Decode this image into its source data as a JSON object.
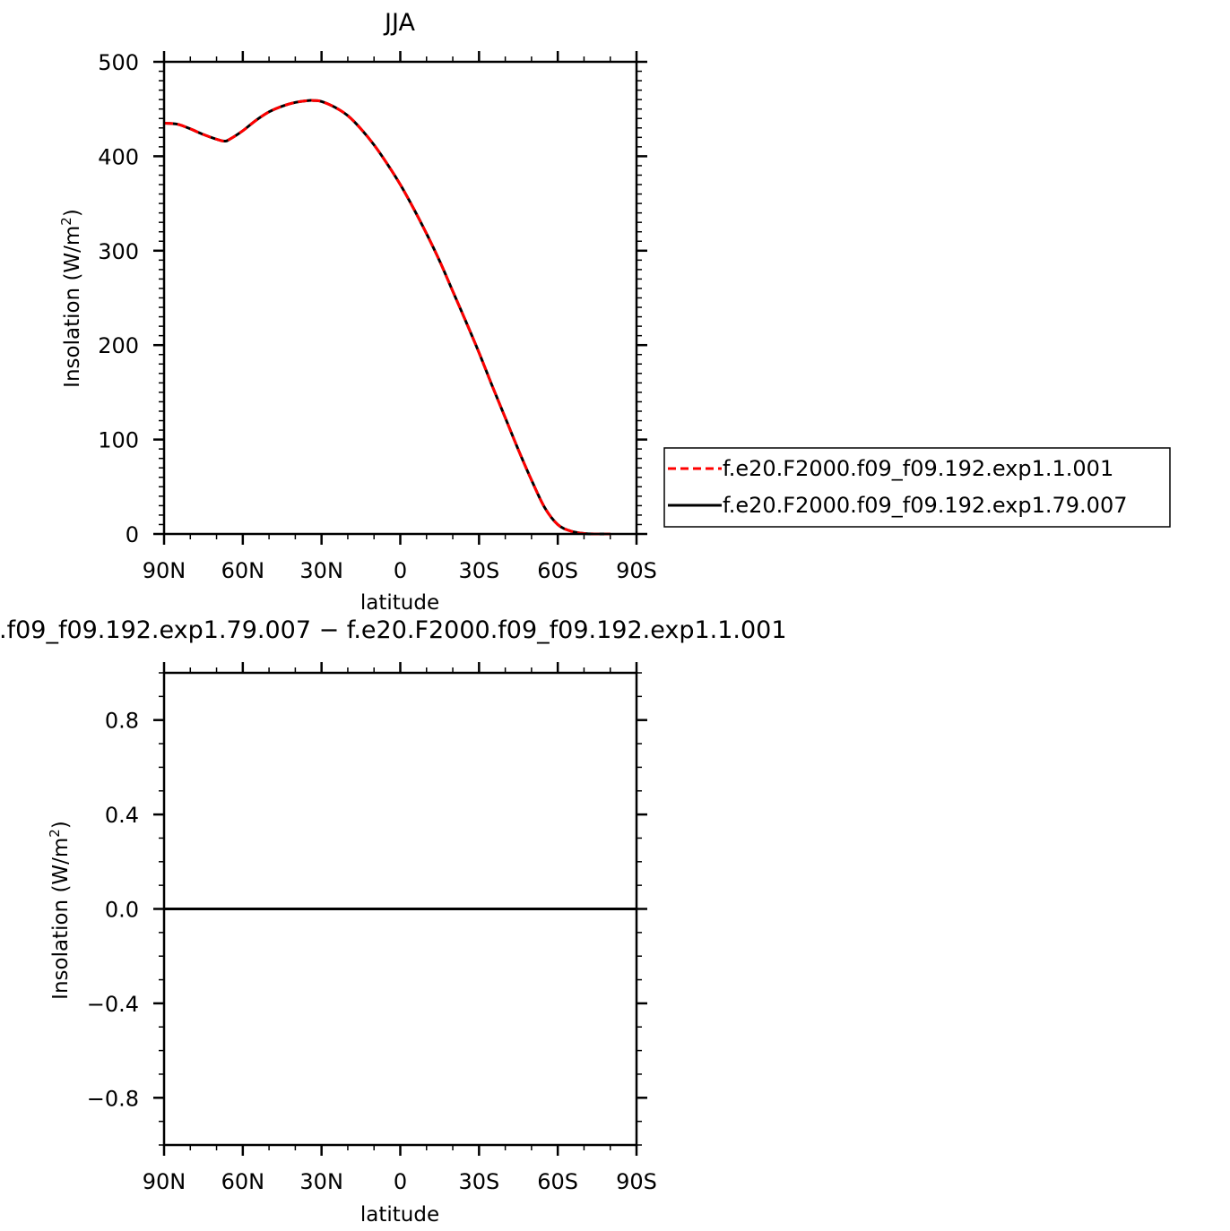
{
  "chart_data": [
    {
      "type": "line",
      "title": "JJA",
      "xlabel": "latitude",
      "ylabel": "Insolation  (W/m",
      "ylabel_sup": "2",
      "ylabel_close": ")",
      "x_tick_labels": [
        "90N",
        "60N",
        "30N",
        "0",
        "30S",
        "60S",
        "90S"
      ],
      "x_tick_values": [
        90,
        60,
        30,
        0,
        -30,
        -60,
        -90
      ],
      "xlim": [
        90,
        -90
      ],
      "ylim": [
        0,
        500
      ],
      "y_ticks": [
        0,
        100,
        200,
        300,
        400,
        500
      ],
      "y_tick_labels": [
        "0",
        "100",
        "200",
        "300",
        "400",
        "500"
      ],
      "grid": false,
      "legend": "right",
      "x": [
        90,
        85,
        80,
        75,
        70,
        67,
        65,
        60,
        55,
        50,
        45,
        40,
        35,
        33,
        30,
        25,
        20,
        15,
        10,
        5,
        0,
        -5,
        -10,
        -15,
        -20,
        -25,
        -30,
        -35,
        -40,
        -45,
        -50,
        -55,
        -60,
        -65,
        -70,
        -75,
        -80
      ],
      "series": [
        {
          "name": "f.e20.F2000.f09_f09.192.exp1.1.001",
          "color": "#ff0000",
          "style": "dashed",
          "values": [
            435,
            434,
            429,
            423,
            418,
            416,
            418,
            427,
            438,
            447,
            453,
            457,
            459,
            459,
            458,
            452,
            443,
            429,
            412,
            392,
            370,
            345,
            318,
            289,
            257,
            225,
            192,
            157,
            123,
            89,
            57,
            28,
            10,
            3,
            0.5,
            0,
            0
          ]
        },
        {
          "name": "f.e20.F2000.f09_f09.192.exp1.79.007",
          "color": "#000000",
          "style": "solid",
          "values": [
            435,
            434,
            429,
            423,
            418,
            416,
            418,
            427,
            438,
            447,
            453,
            457,
            459,
            459,
            458,
            452,
            443,
            429,
            412,
            392,
            370,
            345,
            318,
            289,
            257,
            225,
            192,
            157,
            123,
            89,
            57,
            28,
            10,
            3,
            0.5,
            0,
            0
          ]
        }
      ]
    },
    {
      "type": "line",
      "title": ".f09_f09.192.exp1.79.007 − f.e20.F2000.f09_f09.192.exp1.1.001",
      "xlabel": "latitude",
      "ylabel": "Insolation  (W/m",
      "ylabel_sup": "2",
      "ylabel_close": ")",
      "x_tick_labels": [
        "90N",
        "60N",
        "30N",
        "0",
        "30S",
        "60S",
        "90S"
      ],
      "x_tick_values": [
        90,
        60,
        30,
        0,
        -30,
        -60,
        -90
      ],
      "xlim": [
        90,
        -90
      ],
      "ylim": [
        -1,
        1
      ],
      "y_ticks": [
        -0.8,
        -0.4,
        0.0,
        0.4,
        0.8
      ],
      "y_tick_labels": [
        "−0.8",
        "−0.4",
        "0.0",
        "0.4",
        "0.8"
      ],
      "grid": false,
      "x": [
        90,
        -90
      ],
      "series": [
        {
          "color": "#000000",
          "style": "solid",
          "values": [
            0,
            0
          ]
        }
      ]
    }
  ]
}
